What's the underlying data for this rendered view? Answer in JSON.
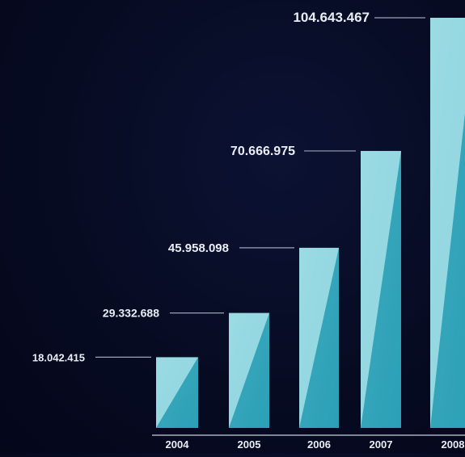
{
  "chart_data": {
    "type": "bar",
    "categories": [
      "2004",
      "2005",
      "2006",
      "2007",
      "2008"
    ],
    "values": [
      18042415,
      29332688,
      45958098,
      70666975,
      104643467
    ],
    "data_labels": [
      "18.042.415",
      "29.332.688",
      "45.958.098",
      "70.666.975",
      "104.643.467"
    ],
    "title": "",
    "xlabel": "",
    "ylabel": "",
    "ylim": [
      0,
      104643467
    ],
    "grid": false,
    "legend": "none"
  },
  "colors": {
    "background": "#070b22",
    "bar_light": "#8fd6e0",
    "bar_dark": "#2aa0b6",
    "label": "#e9eef5",
    "leader_line": "#9aa3b5",
    "axis": "#c8d0dc"
  }
}
